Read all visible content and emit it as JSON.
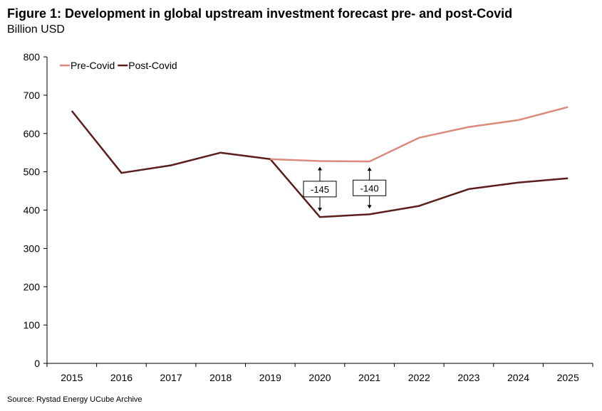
{
  "figure": {
    "title": "Figure 1: Development in global upstream investment forecast pre- and post-Covid",
    "subtitle": "Billion USD",
    "source": "Source: Rystad Energy UCube Archive"
  },
  "chart_data": {
    "type": "line",
    "title": "Figure 1: Development in global upstream investment forecast pre- and post-Covid",
    "subtitle": "Billion USD",
    "xlabel": "",
    "ylabel": "Billion USD",
    "categories": [
      "2015",
      "2016",
      "2017",
      "2018",
      "2019",
      "2020",
      "2021",
      "2022",
      "2023",
      "2024",
      "2025"
    ],
    "ylim": [
      0,
      800
    ],
    "yticks": [
      0,
      100,
      200,
      300,
      400,
      500,
      600,
      700,
      800
    ],
    "grid": false,
    "legend_position": "top-left",
    "series": [
      {
        "name": "Pre-Covid",
        "color": "#d98a7c",
        "values": [
          null,
          null,
          null,
          null,
          533,
          528,
          527,
          589,
          617,
          635,
          669
        ]
      },
      {
        "name": "Post-Covid",
        "color": "#5a1e1b",
        "values": [
          659,
          497,
          517,
          550,
          533,
          382,
          389,
          411,
          455,
          472,
          483
        ]
      }
    ],
    "annotations": [
      {
        "text": "-145",
        "x": "2020",
        "from": 528,
        "to": 382
      },
      {
        "text": "-140",
        "x": "2021",
        "from": 527,
        "to": 389
      }
    ]
  }
}
